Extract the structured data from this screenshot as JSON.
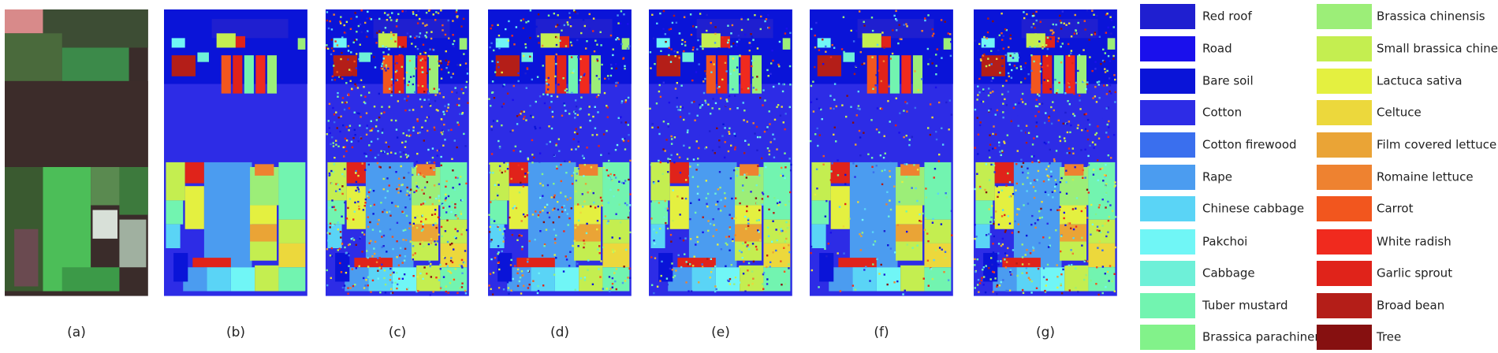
{
  "panels": [
    {
      "label": "(a)"
    },
    {
      "label": "(b)"
    },
    {
      "label": "(c)"
    },
    {
      "label": "(d)"
    },
    {
      "label": "(e)"
    },
    {
      "label": "(f)"
    },
    {
      "label": "(g)"
    }
  ],
  "legend": [
    {
      "label": "Red roof",
      "color": "#1f1fd0"
    },
    {
      "label": "Road",
      "color": "#1a10ec"
    },
    {
      "label": "Bare soil",
      "color": "#0a14d8"
    },
    {
      "label": "Cotton",
      "color": "#2d2ce6"
    },
    {
      "label": "Cotton firewood",
      "color": "#3a6fee"
    },
    {
      "label": "Rape",
      "color": "#4b9cf0"
    },
    {
      "label": "Chinese cabbage",
      "color": "#5ad4f6"
    },
    {
      "label": "Pakchoi",
      "color": "#70f6f6"
    },
    {
      "label": "Cabbage",
      "color": "#6ef0d8"
    },
    {
      "label": "Tuber mustard",
      "color": "#72f4b0"
    },
    {
      "label": "Brassica parachinensis",
      "color": "#82f28a"
    },
    {
      "label": "Brassica chinensis",
      "color": "#9cee78"
    },
    {
      "label": "Small brassica chinensis",
      "color": "#c4ee50"
    },
    {
      "label": "Lactuca sativa",
      "color": "#e4f040"
    },
    {
      "label": "Celtuce",
      "color": "#ecd83c"
    },
    {
      "label": "Film covered lettuce",
      "color": "#eaa436"
    },
    {
      "label": "Romaine lettuce",
      "color": "#ee8230"
    },
    {
      "label": "Carrot",
      "color": "#f2561e"
    },
    {
      "label": "White radish",
      "color": "#f02a1e"
    },
    {
      "label": "Garlic sprout",
      "color": "#e0231a"
    },
    {
      "label": "Broad bean",
      "color": "#b41e18"
    },
    {
      "label": "Tree",
      "color": "#861010"
    }
  ]
}
